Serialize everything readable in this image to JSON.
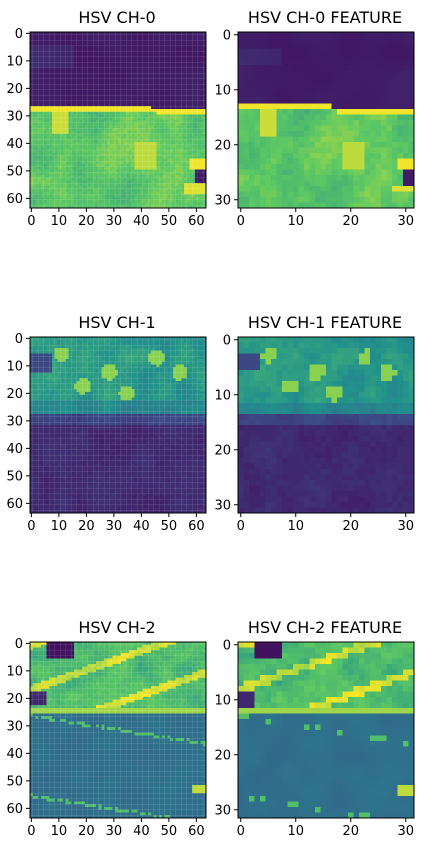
{
  "figure": {
    "colormap": "viridis",
    "palette": [
      "#440154",
      "#3b528b",
      "#21918c",
      "#5ec962",
      "#fde725"
    ]
  },
  "chart_data": [
    {
      "type": "heatmap",
      "title": "HSV CH-0",
      "xlabel": "",
      "ylabel": "",
      "size": 64,
      "x_ticks": [
        0,
        10,
        20,
        30,
        40,
        50,
        60
      ],
      "y_ticks": [
        0,
        10,
        20,
        30,
        40,
        50,
        60
      ],
      "xlim": [
        0,
        63
      ],
      "ylim": [
        63,
        0
      ],
      "description": "Dark purple (low) upper region rows 0-27; bright green/yellow (high) lower region rows 28-63 with yellow patches near x 5-10 and x 40-45, and a yellow/dark patch at lower right"
    },
    {
      "type": "heatmap",
      "title": "HSV CH-0 FEATURE",
      "xlabel": "",
      "ylabel": "",
      "size": 32,
      "x_ticks": [
        0,
        10,
        20,
        30
      ],
      "y_ticks": [
        0,
        10,
        20,
        30
      ],
      "xlim": [
        0,
        31
      ],
      "ylim": [
        31,
        0
      ],
      "description": "Downsampled CH-0: dark purple rows 0-13, green/yellow rows 14-31"
    },
    {
      "type": "heatmap",
      "title": "HSV CH-1",
      "xlabel": "",
      "ylabel": "",
      "size": 64,
      "x_ticks": [
        0,
        10,
        20,
        30,
        40,
        50,
        60
      ],
      "y_ticks": [
        0,
        10,
        20,
        30,
        40,
        50,
        60
      ],
      "xlim": [
        0,
        63
      ],
      "ylim": [
        63,
        0
      ],
      "description": "Teal/green upper region rows 0-25 with light green spots; dark purple lower region rows 28-63"
    },
    {
      "type": "heatmap",
      "title": "HSV CH-1 FEATURE",
      "xlabel": "",
      "ylabel": "",
      "size": 32,
      "x_ticks": [
        0,
        10,
        20,
        30
      ],
      "y_ticks": [
        0,
        10,
        20,
        30
      ],
      "xlim": [
        0,
        31
      ],
      "ylim": [
        31,
        0
      ],
      "description": "Downsampled CH-1: teal/green rows 0-12, dark purple rows 13-31"
    },
    {
      "type": "heatmap",
      "title": "HSV CH-2",
      "xlabel": "",
      "ylabel": "",
      "size": 64,
      "x_ticks": [
        0,
        10,
        20,
        30,
        40,
        50,
        60
      ],
      "y_ticks": [
        0,
        10,
        20,
        30,
        40,
        50,
        60
      ],
      "xlim": [
        0,
        63
      ],
      "ylim": [
        63,
        0
      ],
      "description": "Green/yellow textured upper region rows 0-25 with diagonal bright bands; blue/teal lower region with diagonal green dashes"
    },
    {
      "type": "heatmap",
      "title": "HSV CH-2 FEATURE",
      "xlabel": "",
      "ylabel": "",
      "size": 32,
      "x_ticks": [
        0,
        10,
        20,
        30
      ],
      "y_ticks": [
        0,
        10,
        20,
        30
      ],
      "xlim": [
        0,
        31
      ],
      "ylim": [
        31,
        0
      ],
      "description": "Downsampled CH-2: bright green/yellow rows 0-12, blue/teal rows 13-31 with green speckles"
    }
  ]
}
